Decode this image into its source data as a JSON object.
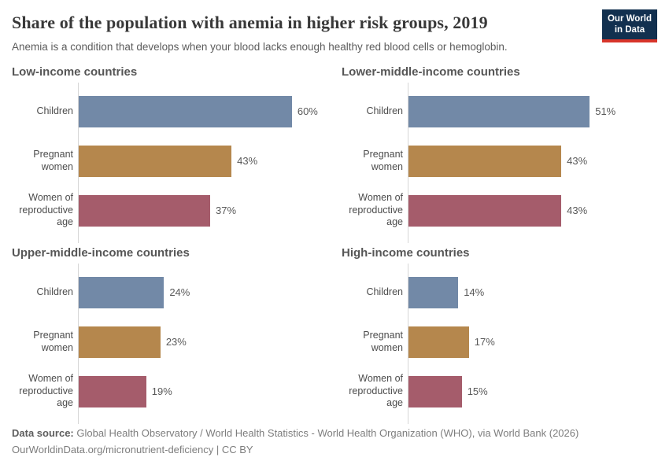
{
  "header": {
    "logo": {
      "line1": "Our World",
      "line2": "in Data"
    }
  },
  "chart_data": {
    "type": "bar",
    "orientation": "horizontal",
    "title": "Share of the population with anemia in higher risk groups, 2019",
    "subtitle": "Anemia is a condition that develops when your blood lacks enough healthy red blood cells or hemoglobin.",
    "categories": [
      "Children",
      "Pregnant women",
      "Women of reproductive age"
    ],
    "series_colors": [
      "#7289A7",
      "#B5874D",
      "#A55C6B"
    ],
    "unit": "%",
    "xlim": [
      0,
      70
    ],
    "grid": false,
    "legend": "none",
    "panels": [
      {
        "title": "Low-income countries",
        "values": [
          60,
          43,
          37
        ]
      },
      {
        "title": "Lower-middle-income countries",
        "values": [
          51,
          43,
          43
        ]
      },
      {
        "title": "Upper-middle-income countries",
        "values": [
          24,
          23,
          19
        ]
      },
      {
        "title": "High-income countries",
        "values": [
          14,
          17,
          15
        ]
      }
    ]
  },
  "footer": {
    "source_label": "Data source:",
    "source_text": " Global Health Observatory / World Health Statistics - World Health Organization (WHO), via World Bank (2026)",
    "license_line": "OurWorldinData.org/micronutrient-deficiency | CC BY"
  }
}
